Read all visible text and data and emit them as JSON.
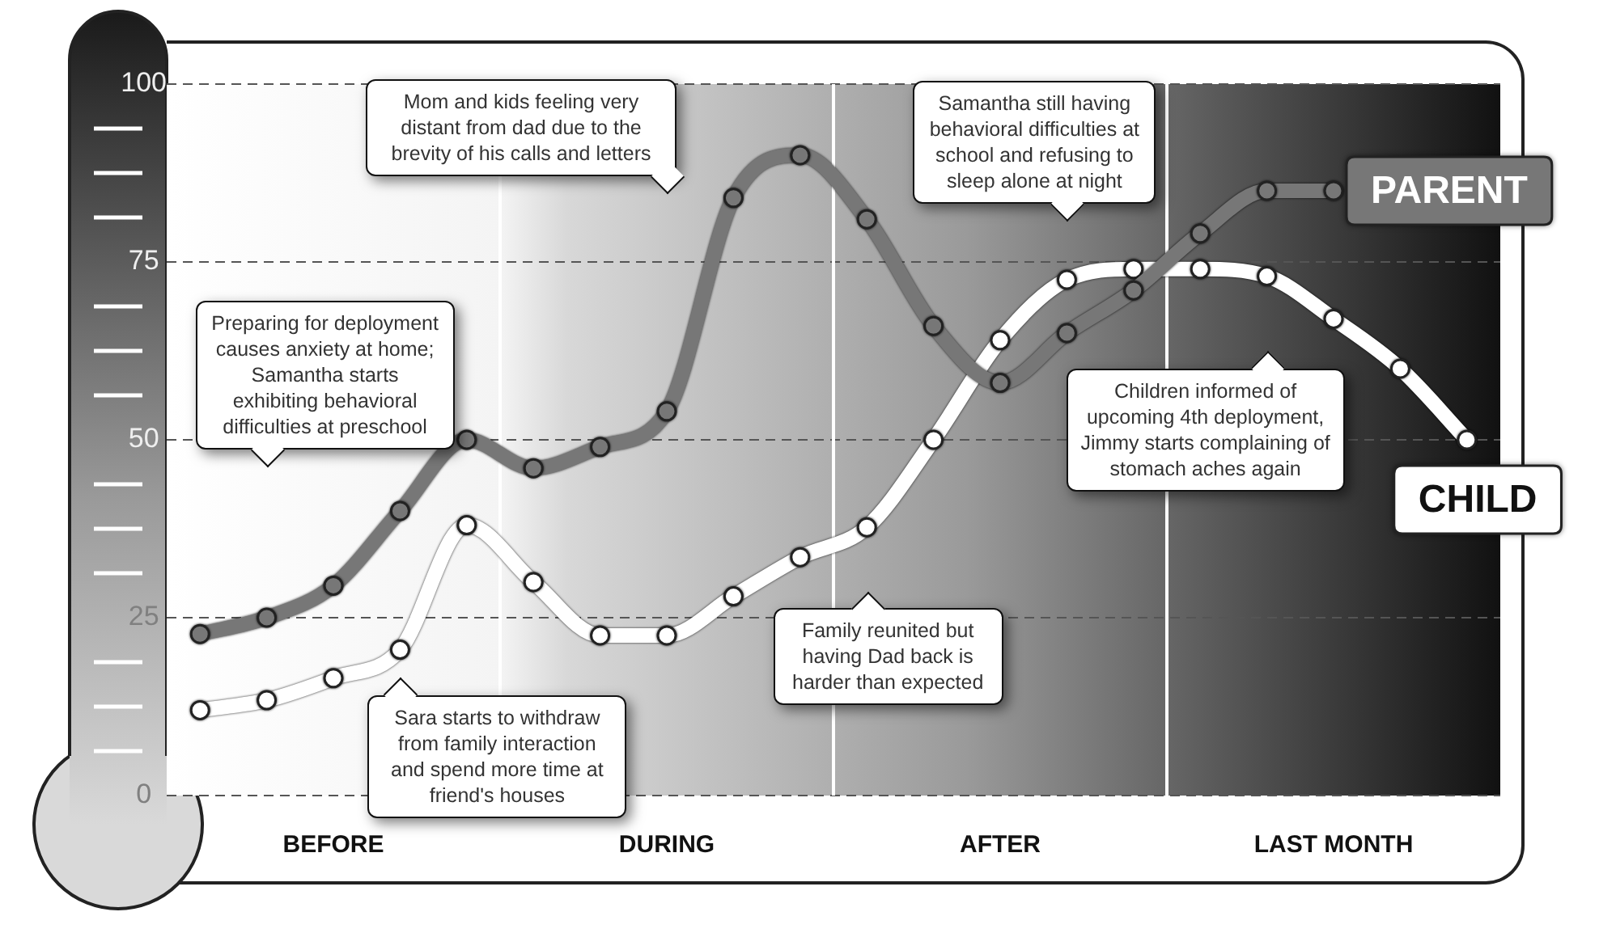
{
  "chart_data": {
    "type": "line",
    "categories": [
      null,
      null,
      "BEFORE",
      null,
      null,
      null,
      null,
      "DURING",
      null,
      null,
      null,
      null,
      "AFTER",
      null,
      null,
      null,
      null,
      "LAST MONTH",
      null,
      null
    ],
    "ylim": [
      0,
      100
    ],
    "yticks": [
      0,
      25,
      50,
      75,
      100
    ],
    "grid": "y",
    "marker": "circle",
    "line_style": "solid",
    "series": [
      {
        "name": "PARENT",
        "color": "#777777",
        "values": [
          22.7,
          25,
          29.5,
          40,
          50,
          46,
          49,
          54,
          84,
          90,
          81,
          66,
          58,
          65,
          71,
          79,
          85,
          85,
          null,
          null
        ]
      },
      {
        "name": "CHILD",
        "color": "#ffffff",
        "values": [
          12,
          13.4,
          16.5,
          20.5,
          38,
          30,
          22.5,
          22.5,
          28,
          33.5,
          37.7,
          50,
          64,
          72.5,
          74,
          74,
          73,
          67,
          60,
          50
        ]
      }
    ],
    "annotations": [
      "Preparing for deployment causes anxiety at home; Samantha starts exhibiting behavioral difficulties at preschool",
      "Mom and kids feeling very distant from dad due to the brevity of his calls and letters",
      "Samantha still having behavioral difficulties at school and refusing to sleep alone at night",
      "Children informed of upcoming 4th deployment, Jimmy starts complaining of stomach aches again",
      "Family reunited but having Dad back is harder than expected",
      "Sara starts to withdraw from family interaction and spend more time at friend's houses"
    ]
  }
}
